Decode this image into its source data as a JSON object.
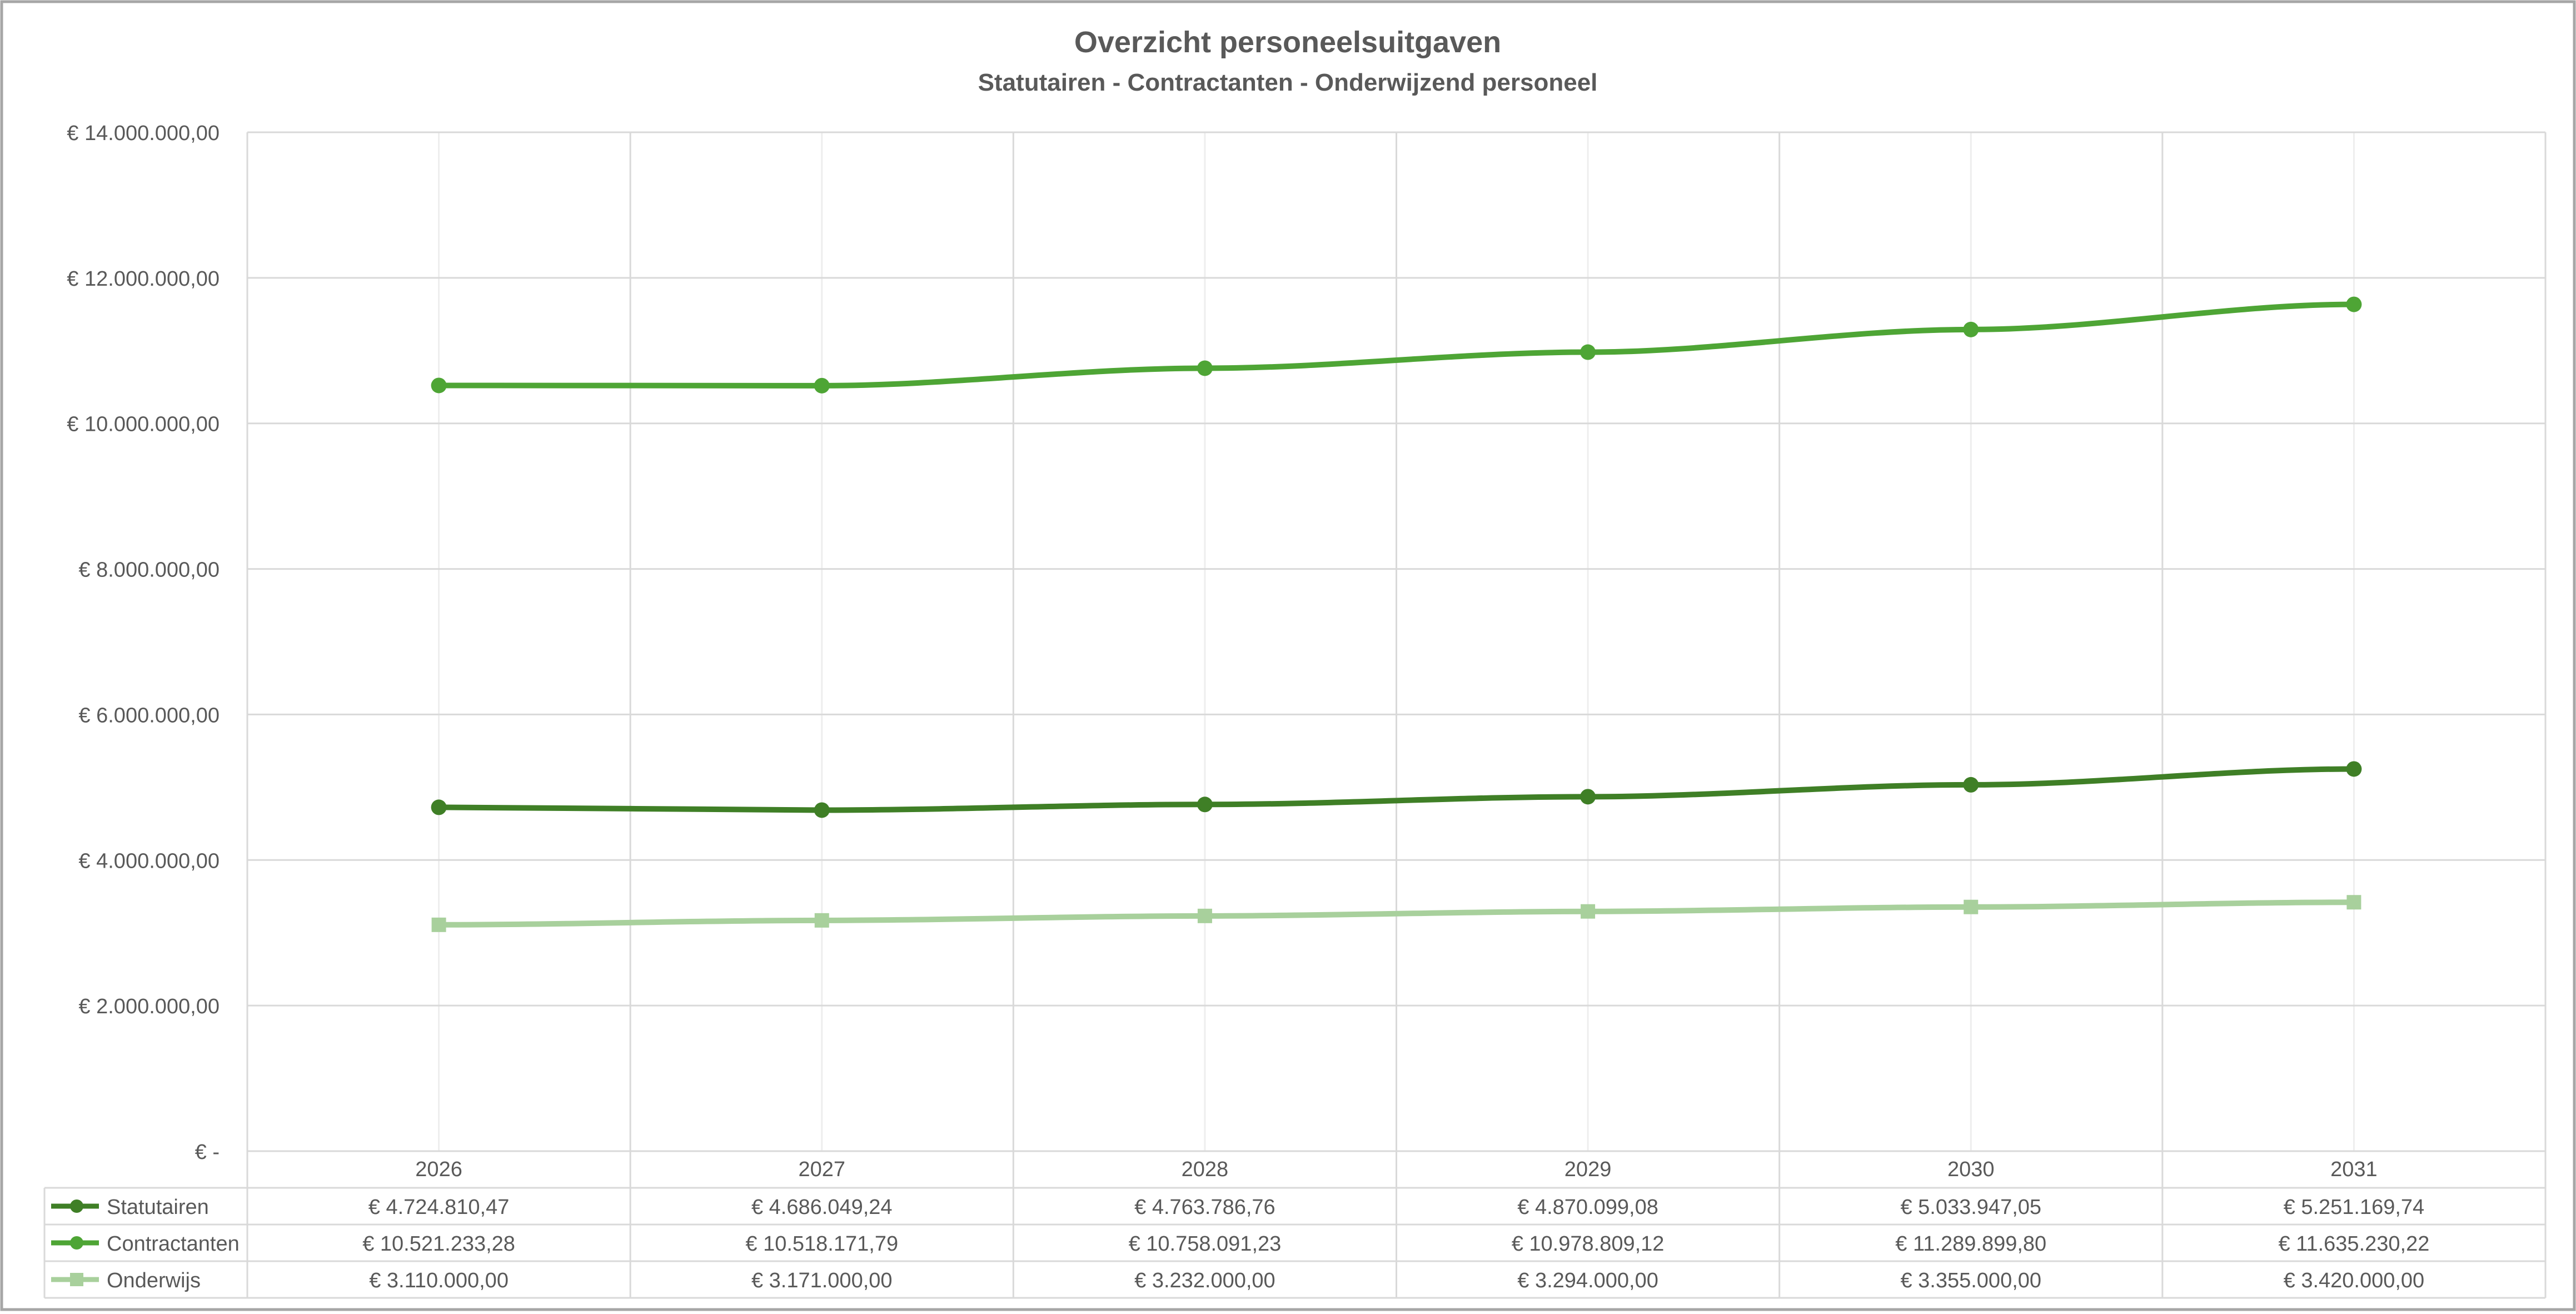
{
  "chart_data": {
    "type": "line",
    "title": "Overzicht personeelsuitgaven",
    "subtitle": "Statutairen - Contractanten - Onderwijzend personeel",
    "categories": [
      "2026",
      "2027",
      "2028",
      "2029",
      "2030",
      "2031"
    ],
    "ylim": [
      0,
      14000000
    ],
    "yticks": [
      {
        "value": 0,
        "label": "€ -"
      },
      {
        "value": 2000000,
        "label": "€ 2.000.000,00"
      },
      {
        "value": 4000000,
        "label": "€ 4.000.000,00"
      },
      {
        "value": 6000000,
        "label": "€ 6.000.000,00"
      },
      {
        "value": 8000000,
        "label": "€ 8.000.000,00"
      },
      {
        "value": 10000000,
        "label": "€ 10.000.000,00"
      },
      {
        "value": 12000000,
        "label": "€ 12.000.000,00"
      },
      {
        "value": 14000000,
        "label": "€ 14.000.000,00"
      }
    ],
    "grid": true,
    "legend": "data-table",
    "series": [
      {
        "name": "Statutairen",
        "color": "#3f7f26",
        "marker": "circle",
        "values": [
          4724810.47,
          4686049.24,
          4763786.76,
          4870099.08,
          5033947.05,
          5251169.74
        ],
        "labels": [
          "€ 4.724.810,47",
          "€ 4.686.049,24",
          "€ 4.763.786,76",
          "€ 4.870.099,08",
          "€ 5.033.947,05",
          "€ 5.251.169,74"
        ]
      },
      {
        "name": "Contractanten",
        "color": "#4ea535",
        "marker": "circle",
        "values": [
          10521233.28,
          10518171.79,
          10758091.23,
          10978809.12,
          11289899.8,
          11635230.22
        ],
        "labels": [
          "€ 10.521.233,28",
          "€ 10.518.171,79",
          "€ 10.758.091,23",
          "€ 10.978.809,12",
          "€ 11.289.899,80",
          "€ 11.635.230,22"
        ]
      },
      {
        "name": "Onderwijs",
        "color": "#a8d09c",
        "marker": "square",
        "values": [
          3110000,
          3171000,
          3232000,
          3294000,
          3355000,
          3420000
        ],
        "labels": [
          "€ 3.110.000,00",
          "€ 3.171.000,00",
          "€ 3.232.000,00",
          "€ 3.294.000,00",
          "€ 3.355.000,00",
          "€ 3.420.000,00"
        ]
      }
    ]
  }
}
